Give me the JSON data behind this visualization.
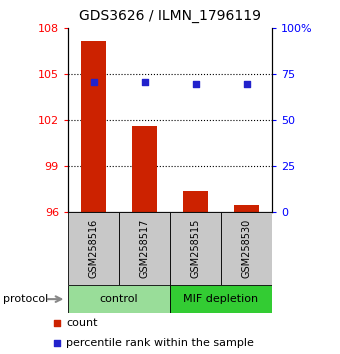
{
  "title": "GDS3626 / ILMN_1796119",
  "samples": [
    "GSM258516",
    "GSM258517",
    "GSM258515",
    "GSM258530"
  ],
  "bar_values": [
    107.2,
    101.6,
    97.4,
    96.5
  ],
  "percentile_ranks": [
    71,
    71,
    70,
    70
  ],
  "ylim_left": [
    96,
    108
  ],
  "yticks_left": [
    96,
    99,
    102,
    105,
    108
  ],
  "yticks_right": [
    0,
    25,
    50,
    75,
    100
  ],
  "ytick_labels_right": [
    "0",
    "25",
    "50",
    "75",
    "100%"
  ],
  "bar_color": "#cc2200",
  "scatter_color": "#2222cc",
  "group_configs": [
    {
      "start": 0,
      "end": 2,
      "label": "control",
      "color": "#99dd99"
    },
    {
      "start": 2,
      "end": 4,
      "label": "MIF depletion",
      "color": "#33cc33"
    }
  ],
  "protocol_label": "protocol",
  "legend_count_label": "count",
  "legend_percentile_label": "percentile rank within the sample",
  "sample_box_color": "#c8c8c8"
}
